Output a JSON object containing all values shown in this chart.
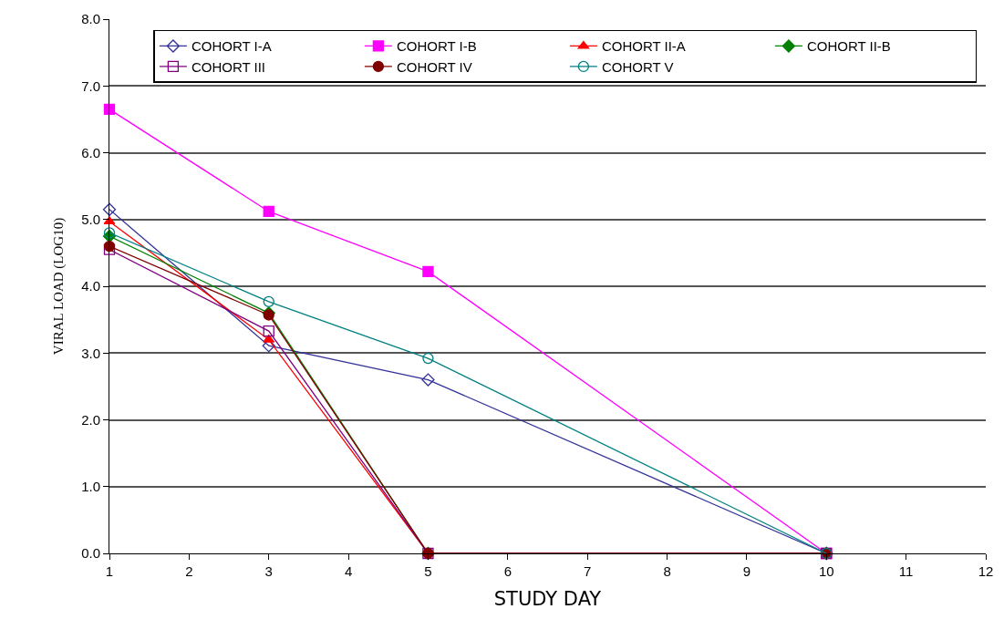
{
  "chart_data": {
    "type": "line",
    "xlabel": "STUDY DAY",
    "ylabel": "VIRAL LOAD (LOG10)",
    "x": [
      1,
      3,
      5,
      10
    ],
    "series": [
      {
        "name": "COHORT I-A",
        "color": "#333399",
        "marker": "diamond-open",
        "values": [
          5.15,
          3.11,
          2.6,
          0
        ]
      },
      {
        "name": "COHORT I-B",
        "color": "#ff00ff",
        "marker": "square",
        "values": [
          6.65,
          5.12,
          4.22,
          0
        ]
      },
      {
        "name": "COHORT II-A",
        "color": "#ff0000",
        "marker": "triangle",
        "values": [
          4.97,
          3.2,
          0,
          0
        ]
      },
      {
        "name": "COHORT II-B",
        "color": "#008000",
        "marker": "diamond",
        "values": [
          4.75,
          3.6,
          0,
          0
        ]
      },
      {
        "name": "COHORT III",
        "color": "#800080",
        "marker": "square-open",
        "values": [
          4.55,
          3.33,
          0,
          0
        ]
      },
      {
        "name": "COHORT IV",
        "color": "#800000",
        "marker": "circle",
        "values": [
          4.6,
          3.57,
          0,
          0
        ]
      },
      {
        "name": "COHORT V",
        "color": "#008080",
        "marker": "circle-open",
        "values": [
          4.8,
          3.77,
          2.92,
          0
        ]
      }
    ],
    "xlim": [
      1,
      12
    ],
    "xticks": [
      1,
      2,
      3,
      4,
      5,
      6,
      7,
      8,
      9,
      10,
      11,
      12
    ],
    "ylim": [
      0,
      8
    ],
    "yticks": [
      {
        "value": 0,
        "label": "0.0"
      },
      {
        "value": 1,
        "label": "1.0"
      },
      {
        "value": 2,
        "label": "2.0"
      },
      {
        "value": 3,
        "label": "3.0"
      },
      {
        "value": 4,
        "label": "4.0"
      },
      {
        "value": 5,
        "label": "5.0"
      },
      {
        "value": 6,
        "label": "6.0"
      },
      {
        "value": 7,
        "label": "7.0"
      },
      {
        "value": 8,
        "label": "8.0"
      }
    ],
    "grid": "y",
    "legend": "top right",
    "line_style": "solid"
  }
}
